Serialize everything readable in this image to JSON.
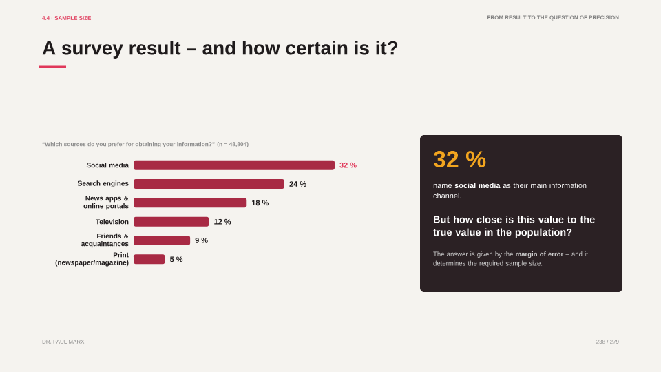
{
  "chart_data": {
    "type": "bar",
    "orientation": "horizontal",
    "title": "A survey result – and how certain is it?",
    "subtitle": "“Which sources do you prefer for obtaining your information?” (n = 48,804)",
    "categories": [
      "Social media",
      "Search engines",
      "News apps & online portals",
      "Television",
      "Friends & acquaintances",
      "Print (newspaper/magazine)"
    ],
    "values": [
      32,
      24,
      18,
      12,
      9,
      5
    ],
    "value_labels": [
      "32 %",
      "24 %",
      "18 %",
      "12 %",
      "9 %",
      "5 %"
    ],
    "color": "#a82a44",
    "xlim": [
      0,
      32
    ],
    "tick_labels": "y",
    "annotations": [
      "4.4 · SAMPLE SIZE",
      "FROM RESULT TO THE QUESTION OF PRECISION",
      "32 %",
      "name **social media** as their main information channel.",
      "But how close is this value to the true value in the population?",
      "The answer is given by the **margin of error** – and it determines the required sample size.",
      "DR. PAUL MARX",
      "238 / 279"
    ]
  }
}
